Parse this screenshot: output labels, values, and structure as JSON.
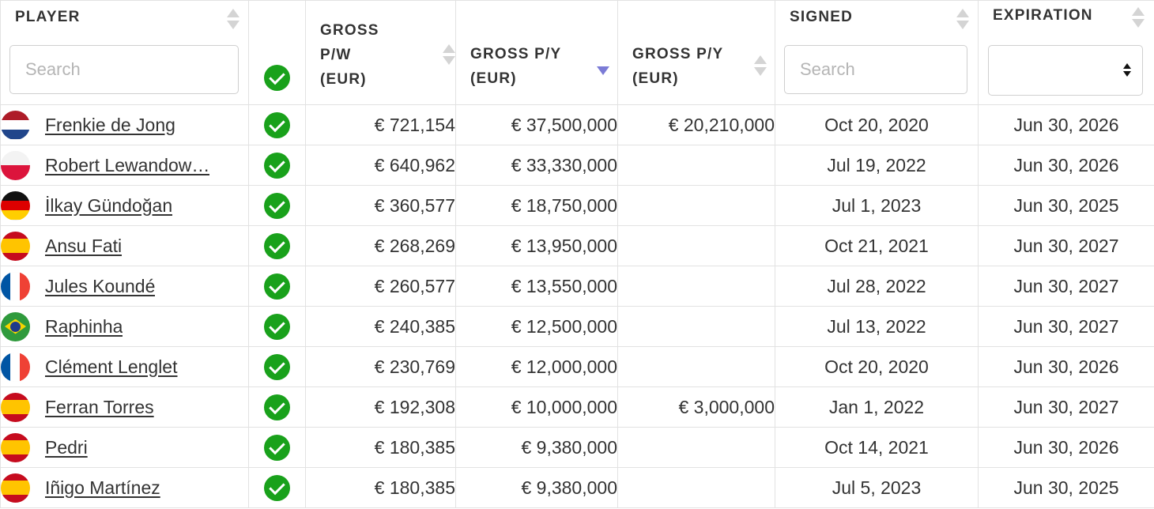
{
  "table": {
    "columns": {
      "player": "PLAYER",
      "gross_pw": [
        "GROSS",
        "P/W",
        "(EUR)"
      ],
      "gross_py": [
        "GROSS P/Y",
        "(EUR)"
      ],
      "gross_py2": [
        "GROSS P/Y",
        "(EUR)"
      ],
      "signed": "SIGNED",
      "expiration": "EXPIRATION"
    },
    "filters": {
      "player_placeholder": "Search",
      "signed_placeholder": "Search",
      "expiration_value": ""
    },
    "sorted_column": "gross_py",
    "sort_direction": "desc",
    "status_color": "#19a11b",
    "rows": [
      {
        "name": "Frenkie de Jong",
        "flag": "netherlands-flag-icon",
        "verified": true,
        "gross_pw": "€ 721,154",
        "gross_py": "€ 37,500,000",
        "gross_py2": "€ 20,210,000",
        "signed": "Oct 20, 2020",
        "expiration": "Jun 30, 2026"
      },
      {
        "name": "Robert Lewandow…",
        "flag": "poland-flag-icon",
        "verified": true,
        "gross_pw": "€ 640,962",
        "gross_py": "€ 33,330,000",
        "gross_py2": "",
        "signed": "Jul 19, 2022",
        "expiration": "Jun 30, 2026"
      },
      {
        "name": "İlkay Gündoğan",
        "flag": "germany-flag-icon",
        "verified": true,
        "gross_pw": "€ 360,577",
        "gross_py": "€ 18,750,000",
        "gross_py2": "",
        "signed": "Jul 1, 2023",
        "expiration": "Jun 30, 2025"
      },
      {
        "name": "Ansu Fati",
        "flag": "spain-flag-icon",
        "verified": true,
        "gross_pw": "€ 268,269",
        "gross_py": "€ 13,950,000",
        "gross_py2": "",
        "signed": "Oct 21, 2021",
        "expiration": "Jun 30, 2027"
      },
      {
        "name": "Jules Koundé",
        "flag": "france-flag-icon",
        "verified": true,
        "gross_pw": "€ 260,577",
        "gross_py": "€ 13,550,000",
        "gross_py2": "",
        "signed": "Jul 28, 2022",
        "expiration": "Jun 30, 2027"
      },
      {
        "name": "Raphinha",
        "flag": "brazil-flag-icon",
        "verified": true,
        "gross_pw": "€ 240,385",
        "gross_py": "€ 12,500,000",
        "gross_py2": "",
        "signed": "Jul 13, 2022",
        "expiration": "Jun 30, 2027"
      },
      {
        "name": "Clément Lenglet",
        "flag": "france-flag-icon",
        "verified": true,
        "gross_pw": "€ 230,769",
        "gross_py": "€ 12,000,000",
        "gross_py2": "",
        "signed": "Oct 20, 2020",
        "expiration": "Jun 30, 2026"
      },
      {
        "name": "Ferran Torres",
        "flag": "spain-flag-icon",
        "verified": true,
        "gross_pw": "€ 192,308",
        "gross_py": "€ 10,000,000",
        "gross_py2": "€ 3,000,000",
        "signed": "Jan 1, 2022",
        "expiration": "Jun 30, 2027"
      },
      {
        "name": "Pedri",
        "flag": "spain-flag-icon",
        "verified": true,
        "gross_pw": "€ 180,385",
        "gross_py": "€ 9,380,000",
        "gross_py2": "",
        "signed": "Oct 14, 2021",
        "expiration": "Jun 30, 2026"
      },
      {
        "name": "Iñigo Martínez",
        "flag": "spain-flag-icon",
        "verified": true,
        "gross_pw": "€ 180,385",
        "gross_py": "€ 9,380,000",
        "gross_py2": "",
        "signed": "Jul 5, 2023",
        "expiration": "Jun 30, 2025"
      }
    ]
  }
}
